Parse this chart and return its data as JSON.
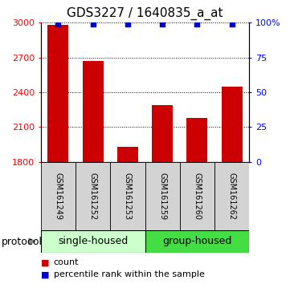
{
  "title": "GDS3227 / 1640835_a_at",
  "samples": [
    "GSM161249",
    "GSM161252",
    "GSM161253",
    "GSM161259",
    "GSM161260",
    "GSM161262"
  ],
  "counts": [
    2980,
    2670,
    1930,
    2290,
    2180,
    2450
  ],
  "percentile_ranks": [
    99,
    99,
    99,
    99,
    99,
    99
  ],
  "ylim_left": [
    1800,
    3000
  ],
  "ylim_right": [
    0,
    100
  ],
  "yticks_left": [
    1800,
    2100,
    2400,
    2700,
    3000
  ],
  "yticks_right": [
    0,
    25,
    50,
    75,
    100
  ],
  "ytick_labels_right": [
    "0",
    "25",
    "50",
    "75",
    "100%"
  ],
  "bar_color": "#cc0000",
  "marker_color": "#0000cc",
  "bar_width": 0.6,
  "background_color": "#ffffff",
  "title_fontsize": 11,
  "tick_fontsize": 8,
  "sample_fontsize": 7,
  "legend_fontsize": 8,
  "protocol_label": "protocol",
  "single_housed_color": "#ccffcc",
  "group_housed_color": "#44dd44",
  "groups": [
    {
      "label": "single-housed",
      "indices": [
        0,
        1,
        2
      ]
    },
    {
      "label": "group-housed",
      "indices": [
        3,
        4,
        5
      ]
    }
  ],
  "group_colors": [
    "#ccffcc",
    "#44dd44"
  ]
}
